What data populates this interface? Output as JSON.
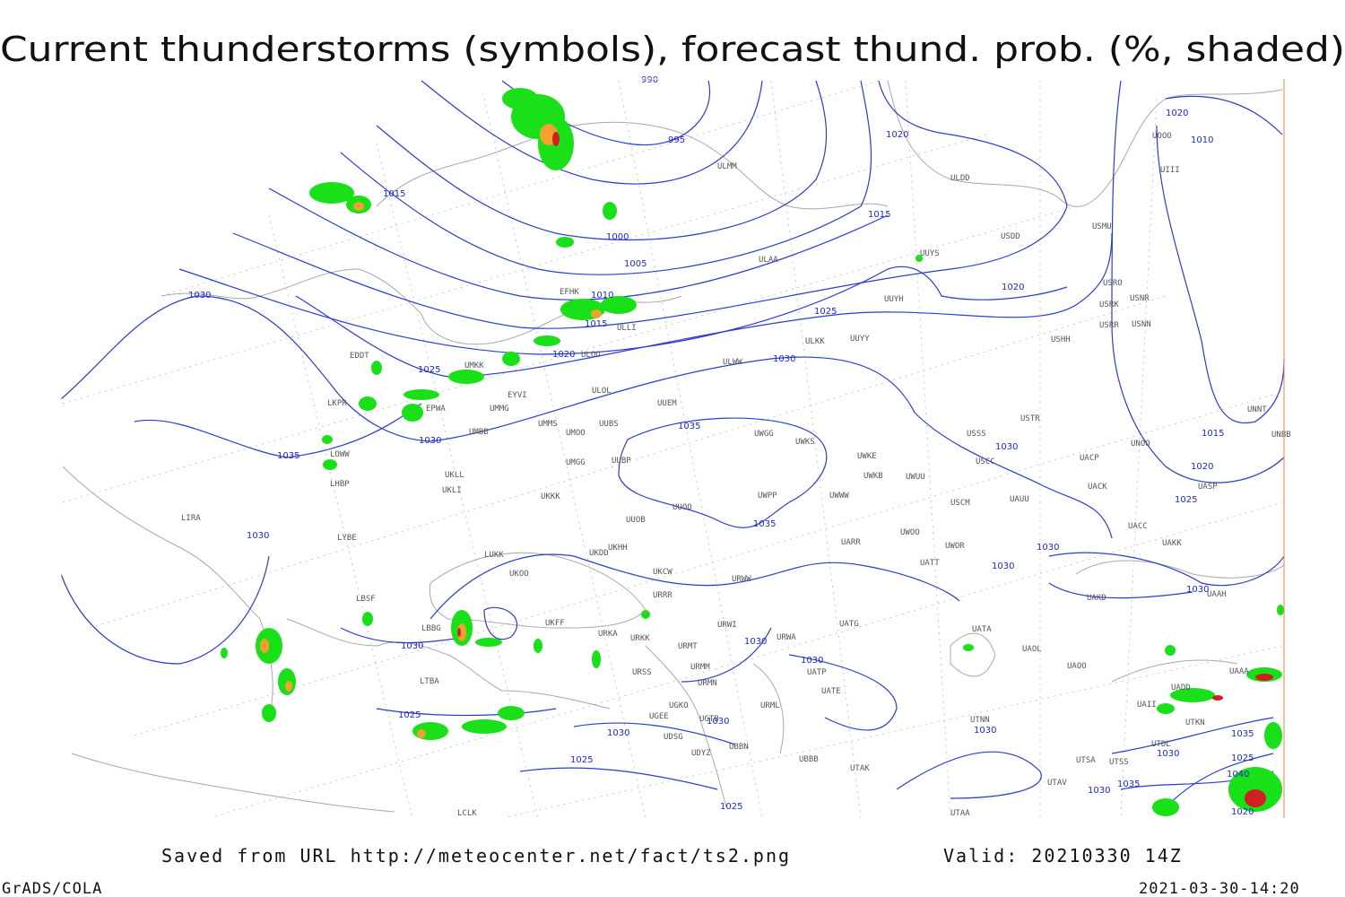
{
  "header": {
    "title": "Current thunderstorms (symbols), forecast thund. prob. (%, shaded)"
  },
  "isobar_labels": [
    "990",
    "995",
    "1015",
    "1000",
    "1005",
    "1010",
    "1015",
    "1020",
    "1025",
    "1030",
    "1030",
    "1035",
    "1030",
    "1025",
    "1020",
    "1015",
    "1020",
    "1020",
    "1010",
    "1015",
    "1020",
    "1025",
    "1030",
    "1035",
    "1035",
    "1030",
    "1030",
    "1030",
    "1030",
    "1030",
    "1030",
    "1030",
    "1025",
    "1030",
    "1030",
    "1025",
    "1025",
    "1030",
    "1030",
    "1035",
    "1025",
    "1040",
    "1030",
    "1035",
    "1020"
  ],
  "stations": [
    "ULMM",
    "ULDD",
    "USMU",
    "USDD",
    "UUYS",
    "ULAA",
    "USRO",
    "USRK",
    "USNR",
    "USRR",
    "USNN",
    "UUYH",
    "USHH",
    "ULKK",
    "UUYY",
    "EFHK",
    "ULLI",
    "ULOO",
    "EDDT",
    "UMKK",
    "ULWW",
    "EYVI",
    "ULOL",
    "UUEM",
    "LKPR",
    "EPWA",
    "UMMG",
    "UMMS",
    "UUBS",
    "UWGG",
    "UWKS",
    "USSS",
    "USTR",
    "UMBB",
    "UMOO",
    "UWKE",
    "USCC",
    "UACP",
    "UNOO",
    "UNBB",
    "UNNT",
    "LOWW",
    "UKLL",
    "UMGG",
    "UUBP",
    "UWKB",
    "UWUU",
    "UACK",
    "UASP",
    "LHBP",
    "UKLI",
    "UKKK",
    "UWPP",
    "UWWW",
    "USCM",
    "UAUU",
    "UUOO",
    "LIRA",
    "UUOB",
    "UACC",
    "LYBE",
    "UWOO",
    "UKHH",
    "UARR",
    "UWOR",
    "UAKK",
    "LUKK",
    "UKDD",
    "UKCW",
    "URWW",
    "UATT",
    "UKOO",
    "URRR",
    "UAKD",
    "UAAH",
    "LBSF",
    "UKFF",
    "URWI",
    "UATG",
    "LBBG",
    "URKA",
    "URKK",
    "URWA",
    "UATA",
    "URMT",
    "UAOL",
    "UAOO",
    "URSS",
    "URMM",
    "UATP",
    "LTBA",
    "URMN",
    "UATE",
    "UAAA",
    "UADD",
    "UGKO",
    "UBBB",
    "UAII",
    "UTKN",
    "UTDL",
    "UGEE",
    "UGTB",
    "UBBN",
    "UDSG",
    "UDYZ",
    "UTAK",
    "UTSA",
    "UTSS",
    "UTAV",
    "UTAA",
    "LCLK",
    "UTNN",
    "URML",
    "UOOO",
    "UIII"
  ],
  "footer": {
    "source": "Saved from URL http://meteocenter.net/fact/ts2.png",
    "valid": "Valid: 20210330 14Z",
    "software": "GrADS/COLA",
    "timestamp": "2021-03-30-14:20"
  }
}
